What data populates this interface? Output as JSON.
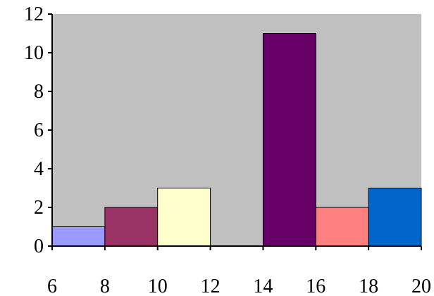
{
  "chart_data": {
    "type": "bar",
    "title": "",
    "xlabel": "",
    "ylabel": "",
    "bins": [
      {
        "x0": 6,
        "x1": 8,
        "value": 1,
        "color": "#9999ff"
      },
      {
        "x0": 8,
        "x1": 10,
        "value": 2,
        "color": "#993366"
      },
      {
        "x0": 10,
        "x1": 12,
        "value": 3,
        "color": "#ffffcc"
      },
      {
        "x0": 12,
        "x1": 14,
        "value": 0,
        "color": "#ccffff"
      },
      {
        "x0": 14,
        "x1": 16,
        "value": 11,
        "color": "#660066"
      },
      {
        "x0": 16,
        "x1": 18,
        "value": 2,
        "color": "#ff8080"
      },
      {
        "x0": 18,
        "x1": 20,
        "value": 3,
        "color": "#0066cc"
      }
    ],
    "xlim": [
      6,
      20
    ],
    "ylim": [
      0,
      12
    ],
    "xticks": [
      "6",
      "8",
      "10",
      "12",
      "14",
      "16",
      "18",
      "20"
    ],
    "yticks": [
      "0",
      "2",
      "4",
      "6",
      "8",
      "10",
      "12"
    ],
    "plot_background": "#c0c0c0",
    "grid": false,
    "legend": "none"
  }
}
